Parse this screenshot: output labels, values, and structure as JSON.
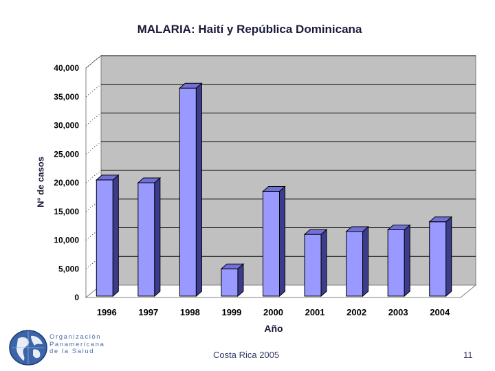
{
  "slide": {
    "organization_lines": [
      "Organización",
      "Panamericana",
      "de la Salud"
    ],
    "footer_center": "Costa Rica 2005",
    "page_number": "11"
  },
  "chart_data": {
    "type": "bar",
    "title": "MALARIA: Haití y República Dominicana",
    "xlabel": "Año",
    "ylabel": "N° de casos",
    "categories": [
      "1996",
      "1997",
      "1998",
      "1999",
      "2000",
      "2001",
      "2002",
      "2003",
      "2004"
    ],
    "values": [
      20500,
      20000,
      36500,
      5000,
      18500,
      11000,
      11500,
      11800,
      13200
    ],
    "ylim": [
      0,
      40000
    ],
    "yticks": [
      0,
      5000,
      10000,
      15000,
      20000,
      25000,
      30000,
      35000,
      40000
    ],
    "ytick_labels": [
      "0",
      "5,000",
      "10,000",
      "15,000",
      "20,000",
      "25,000",
      "30,000",
      "35,000",
      "40,000"
    ],
    "grid": true,
    "bar_color": "#9999ff",
    "bar_side_color": "#3c3c8c",
    "bar_top_color": "#7070d8",
    "plot_background": "#c0c0c0"
  }
}
